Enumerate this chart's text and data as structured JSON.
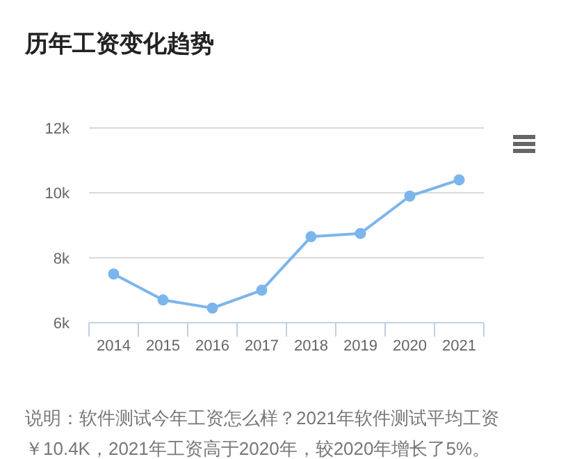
{
  "chart_data": {
    "type": "line",
    "title": "历年工资变化趋势",
    "categories": [
      "2014",
      "2015",
      "2016",
      "2017",
      "2018",
      "2019",
      "2020",
      "2021"
    ],
    "series": [
      {
        "color": "#7cb5ec",
        "values": [
          7.5,
          6.7,
          6.45,
          7.0,
          8.65,
          8.75,
          9.9,
          10.4
        ]
      }
    ],
    "ylim": [
      6,
      12
    ],
    "yticks": [
      {
        "value": 6,
        "label": "6k"
      },
      {
        "value": 8,
        "label": "8k"
      },
      {
        "value": 10,
        "label": "10k"
      },
      {
        "value": 12,
        "label": "12k"
      }
    ],
    "grid": "y",
    "marker": "circle",
    "line_style": "solid",
    "annotations": [
      "说明：软件测试今年工资怎么样？2021年软件测试平均工资￥10.4K，2021年工资高于2020年，较2020年增长了5%。"
    ]
  }
}
